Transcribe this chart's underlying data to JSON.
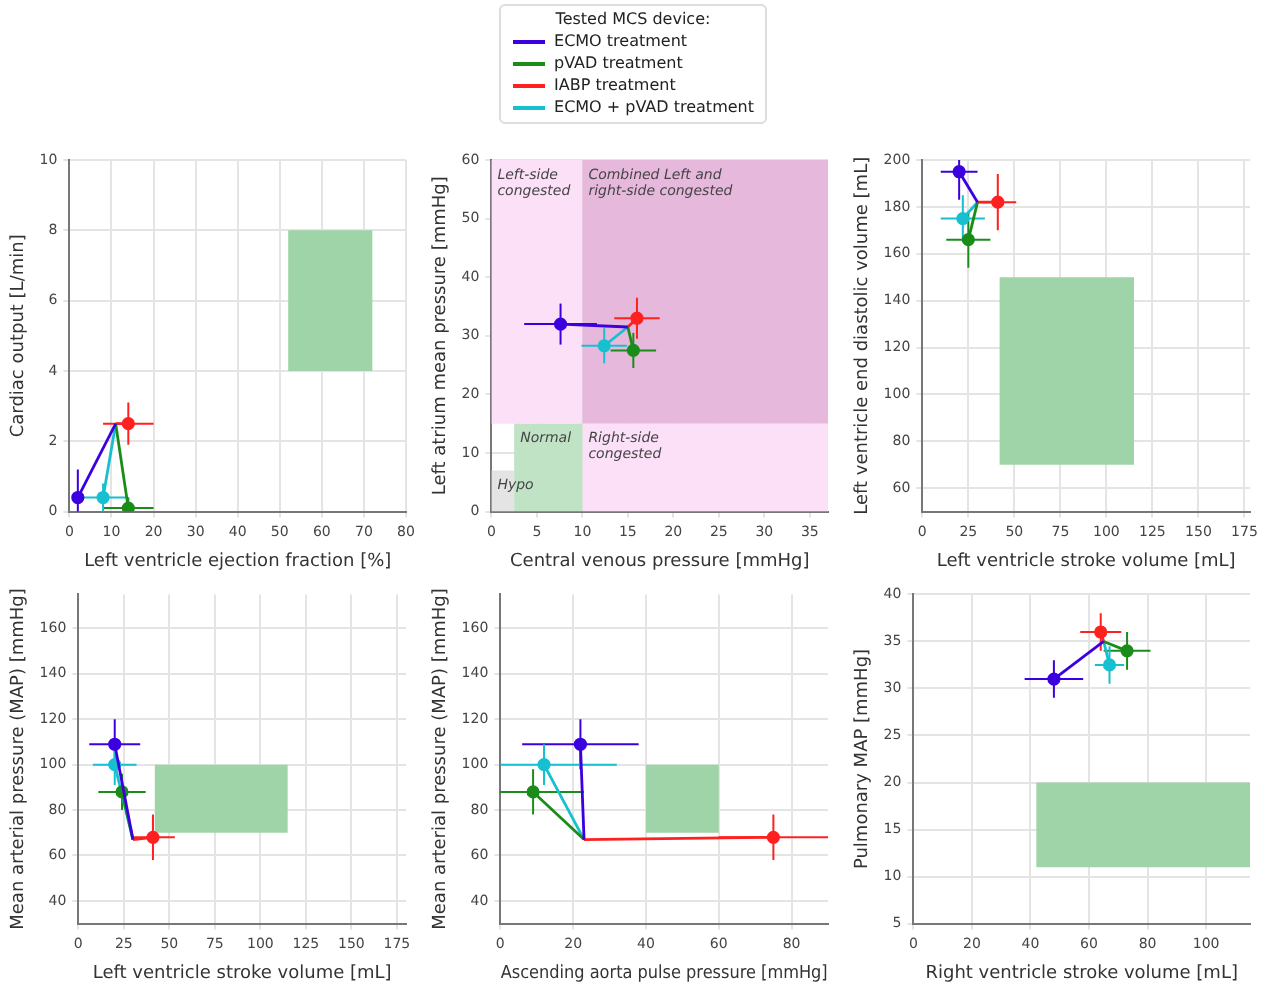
{
  "chart_data": [
    {
      "type": "line",
      "xlabel": "Left ventricle ejection fraction [%]",
      "ylabel": "Cardiac output [L/min]",
      "xlim": [
        0,
        80
      ],
      "xticks": [
        0,
        10,
        20,
        30,
        40,
        50,
        60,
        70,
        80
      ],
      "ylim": [
        0,
        10
      ],
      "yticks": [
        0,
        2,
        4,
        6,
        8,
        10
      ],
      "grid": true,
      "series": [
        {
          "color": "#9fd4a8",
          "x": [
            52,
            72
          ],
          "values": [
            null,
            null
          ],
          "lower": [
            4,
            4
          ],
          "upper": [
            8,
            8
          ]
        },
        {
          "marker": "circle",
          "color": "#3c00e0",
          "x": [
            11,
            2
          ],
          "values": [
            2.5,
            0.4
          ],
          "errors": [
            null,
            0.8
          ],
          "xerrors": [
            null,
            1
          ]
        },
        {
          "marker": "circle",
          "color": "#1a8c1a",
          "x": [
            11,
            14
          ],
          "values": [
            2.5,
            0.1
          ],
          "errors": [
            null,
            0.3
          ],
          "xerrors": [
            null,
            6
          ]
        },
        {
          "marker": "circle",
          "color": "#ff2020",
          "x": [
            11,
            14
          ],
          "values": [
            2.5,
            2.5
          ],
          "errors": [
            null,
            0.6
          ],
          "xerrors": [
            null,
            6
          ]
        },
        {
          "marker": "circle",
          "color": "#17c0d0",
          "x": [
            11,
            8
          ],
          "values": [
            2.5,
            0.4
          ],
          "errors": [
            null,
            0.4
          ],
          "xerrors": [
            null,
            6
          ]
        }
      ]
    },
    {
      "type": "line",
      "xlabel": "Central venous pressure [mmHg]",
      "ylabel": "Left atrium mean pressure [mmHg]",
      "xlim": [
        0,
        37
      ],
      "xticks": [
        0,
        5,
        10,
        15,
        20,
        25,
        30,
        35
      ],
      "ylim": [
        0,
        60
      ],
      "yticks": [
        0,
        10,
        20,
        30,
        40,
        50,
        60
      ],
      "grid": true,
      "legend": "top",
      "legend_title": "Tested MCS device:",
      "annotations": [
        "Left-side\ncongested",
        "Combined Left and\nright-side congested",
        "Right-side\ncongested",
        "Normal",
        "Hypo"
      ],
      "series": [
        {
          "color": "#fbe0f8",
          "x": [
            0,
            10
          ],
          "values": [
            null,
            null
          ],
          "lower": [
            15,
            15
          ],
          "upper": [
            60,
            60
          ]
        },
        {
          "color": "#e6b8dc",
          "x": [
            10,
            37
          ],
          "values": [
            null,
            null
          ],
          "lower": [
            15,
            15
          ],
          "upper": [
            60,
            60
          ]
        },
        {
          "color": "#fbe0f8",
          "x": [
            10,
            37
          ],
          "values": [
            null,
            null
          ],
          "lower": [
            0,
            0
          ],
          "upper": [
            15,
            15
          ]
        },
        {
          "color": "#bfe3c4",
          "x": [
            2.5,
            10
          ],
          "values": [
            null,
            null
          ],
          "lower": [
            0,
            0
          ],
          "upper": [
            15,
            15
          ]
        },
        {
          "color": "#e4e4e4",
          "x": [
            0,
            2.5
          ],
          "values": [
            null,
            null
          ],
          "lower": [
            0,
            0
          ],
          "upper": [
            7,
            7
          ]
        },
        {
          "name": "ECMO treatment",
          "marker": "circle",
          "color": "#3c00e0",
          "x": [
            15,
            7.6
          ],
          "values": [
            31.5,
            32
          ],
          "errors": [
            null,
            3.5
          ],
          "xerrors": [
            null,
            4
          ]
        },
        {
          "name": "pVAD treatment",
          "marker": "circle",
          "color": "#1a8c1a",
          "x": [
            15,
            15.6
          ],
          "values": [
            31.5,
            27.5
          ],
          "errors": [
            null,
            3
          ],
          "xerrors": [
            null,
            2.5
          ]
        },
        {
          "name": "IABP treatment",
          "marker": "circle",
          "color": "#ff2020",
          "x": [
            15,
            16
          ],
          "values": [
            31.5,
            33
          ],
          "errors": [
            null,
            3.5
          ],
          "xerrors": [
            null,
            2.5
          ]
        },
        {
          "name": "ECMO + pVAD treatment",
          "marker": "circle",
          "color": "#17c0d0",
          "x": [
            15,
            12.4
          ],
          "values": [
            31.5,
            28.3
          ],
          "errors": [
            null,
            3
          ],
          "xerrors": [
            null,
            2.5
          ]
        }
      ]
    },
    {
      "type": "line",
      "xlabel": "Left ventricle stroke volume [mL]",
      "ylabel": "Left ventricle end diastolic volume [mL]",
      "xlim": [
        0,
        178
      ],
      "xticks": [
        0,
        25,
        50,
        75,
        100,
        125,
        150,
        175
      ],
      "ylim": [
        50,
        200
      ],
      "yticks": [
        60,
        80,
        100,
        120,
        140,
        160,
        180,
        200
      ],
      "grid": true,
      "series": [
        {
          "color": "#9fd4a8",
          "x": [
            42,
            115
          ],
          "values": [
            null,
            null
          ],
          "lower": [
            70,
            70
          ],
          "upper": [
            150,
            150
          ]
        },
        {
          "marker": "circle",
          "color": "#3c00e0",
          "x": [
            30,
            20
          ],
          "values": [
            182,
            195
          ],
          "errors": [
            null,
            12
          ],
          "xerrors": [
            null,
            10
          ]
        },
        {
          "marker": "circle",
          "color": "#1a8c1a",
          "x": [
            30,
            25
          ],
          "values": [
            182,
            166
          ],
          "errors": [
            null,
            12
          ],
          "xerrors": [
            null,
            12
          ]
        },
        {
          "marker": "circle",
          "color": "#ff2020",
          "x": [
            30,
            41
          ],
          "values": [
            182,
            182
          ],
          "errors": [
            null,
            12
          ],
          "xerrors": [
            null,
            10
          ]
        },
        {
          "marker": "circle",
          "color": "#17c0d0",
          "x": [
            30,
            22
          ],
          "values": [
            182,
            175
          ],
          "errors": [
            null,
            10
          ],
          "xerrors": [
            null,
            12
          ]
        }
      ]
    },
    {
      "type": "line",
      "xlabel": "Left ventricle stroke volume [mL]",
      "ylabel": "Mean arterial pressure (MAP) [mmHg]",
      "xlim": [
        0,
        180
      ],
      "xticks": [
        0,
        25,
        50,
        75,
        100,
        125,
        150,
        175
      ],
      "ylim": [
        30,
        175
      ],
      "yticks": [
        40,
        60,
        80,
        100,
        120,
        140,
        160
      ],
      "grid": true,
      "series": [
        {
          "color": "#9fd4a8",
          "x": [
            42,
            115
          ],
          "values": [
            null,
            null
          ],
          "lower": [
            70,
            70
          ],
          "upper": [
            100,
            100
          ]
        },
        {
          "marker": "circle",
          "color": "#3c00e0",
          "x": [
            30,
            20
          ],
          "values": [
            67,
            109
          ],
          "errors": [
            null,
            11
          ],
          "xerrors": [
            null,
            14
          ]
        },
        {
          "marker": "circle",
          "color": "#1a8c1a",
          "x": [
            30,
            24
          ],
          "values": [
            67,
            88
          ],
          "errors": [
            null,
            8
          ],
          "xerrors": [
            null,
            13
          ]
        },
        {
          "marker": "circle",
          "color": "#ff2020",
          "x": [
            30,
            41
          ],
          "values": [
            67,
            68
          ],
          "errors": [
            null,
            10
          ],
          "xerrors": [
            null,
            12
          ]
        },
        {
          "marker": "circle",
          "color": "#17c0d0",
          "x": [
            30,
            20
          ],
          "values": [
            67,
            100
          ],
          "errors": [
            null,
            9
          ],
          "xerrors": [
            null,
            12
          ]
        }
      ]
    },
    {
      "type": "line",
      "xlabel": "Ascending aorta pulse pressure [mmHg]",
      "ylabel": "Mean arterial pressure (MAP) [mmHg]",
      "xlim": [
        0,
        90
      ],
      "xticks": [
        0,
        20,
        40,
        60,
        80
      ],
      "ylim": [
        30,
        175
      ],
      "yticks": [
        40,
        60,
        80,
        100,
        120,
        140,
        160
      ],
      "grid": true,
      "series": [
        {
          "color": "#9fd4a8",
          "x": [
            40,
            60
          ],
          "values": [
            null,
            null
          ],
          "lower": [
            70,
            70
          ],
          "upper": [
            100,
            100
          ]
        },
        {
          "marker": "circle",
          "color": "#3c00e0",
          "x": [
            23,
            22
          ],
          "values": [
            67,
            109
          ],
          "errors": [
            null,
            11
          ],
          "xerrors": [
            null,
            16
          ]
        },
        {
          "marker": "circle",
          "color": "#1a8c1a",
          "x": [
            23,
            9
          ],
          "values": [
            67,
            88
          ],
          "errors": [
            null,
            10
          ],
          "xerrors": [
            null,
            14
          ]
        },
        {
          "marker": "circle",
          "color": "#ff2020",
          "x": [
            23,
            75
          ],
          "values": [
            67,
            68
          ],
          "errors": [
            null,
            10
          ],
          "xerrors": [
            null,
            15
          ]
        },
        {
          "marker": "circle",
          "color": "#17c0d0",
          "x": [
            23,
            12
          ],
          "values": [
            67,
            100
          ],
          "errors": [
            null,
            9
          ],
          "xerrors": [
            null,
            [
              0,
              32
            ]
          ]
        }
      ]
    },
    {
      "type": "line",
      "xlabel": "Right ventricle stroke volume [mL]",
      "ylabel": "Pulmonary MAP [mmHg]",
      "xlim": [
        0,
        115
      ],
      "xticks": [
        0,
        20,
        40,
        60,
        80,
        100
      ],
      "ylim": [
        5,
        40
      ],
      "yticks": [
        5,
        10,
        15,
        20,
        25,
        30,
        35,
        40
      ],
      "grid": true,
      "series": [
        {
          "color": "#9fd4a8",
          "x": [
            42,
            115
          ],
          "values": [
            null,
            null
          ],
          "lower": [
            11,
            11
          ],
          "upper": [
            20,
            20
          ]
        },
        {
          "marker": "circle",
          "color": "#3c00e0",
          "x": [
            65,
            48
          ],
          "values": [
            35,
            31
          ],
          "errors": [
            null,
            2
          ],
          "xerrors": [
            null,
            10
          ]
        },
        {
          "marker": "circle",
          "color": "#1a8c1a",
          "x": [
            65,
            73
          ],
          "values": [
            35,
            34
          ],
          "errors": [
            null,
            2
          ],
          "xerrors": [
            null,
            8
          ]
        },
        {
          "marker": "circle",
          "color": "#ff2020",
          "x": [
            65,
            64
          ],
          "values": [
            35,
            36
          ],
          "errors": [
            null,
            2
          ],
          "xerrors": [
            null,
            7
          ]
        },
        {
          "marker": "circle",
          "color": "#17c0d0",
          "x": [
            65,
            67
          ],
          "values": [
            35,
            32.5
          ],
          "errors": [
            null,
            2
          ],
          "xerrors": [
            null,
            5
          ]
        }
      ]
    }
  ]
}
